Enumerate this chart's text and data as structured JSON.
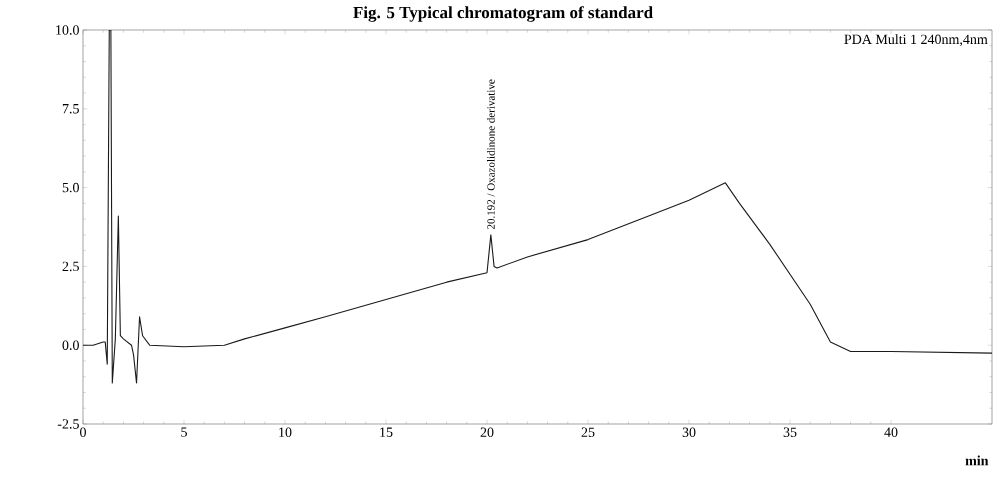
{
  "chart_data": {
    "type": "line",
    "title": "Fig. 5 Typical chromatogram of standard",
    "xlabel": "min",
    "annotations": [
      {
        "text": "20.192 / Oxazolidinone derivative",
        "x": 20.192,
        "y": 3.6
      },
      "PDA Multi 1 240nm,4nm"
    ],
    "x": [
      0,
      0.5,
      1.0,
      1.1,
      1.2,
      1.3,
      1.38,
      1.45,
      1.6,
      1.75,
      1.85,
      2.0,
      2.4,
      2.5,
      2.65,
      2.8,
      2.95,
      3.3,
      5,
      7,
      8,
      10,
      12,
      15,
      18,
      20,
      20.19,
      20.35,
      20.5,
      22,
      25,
      28,
      30,
      31.8,
      32.5,
      34,
      36,
      37,
      38,
      40,
      45
    ],
    "series": [
      {
        "color": "#1a1a1a",
        "values": [
          0,
          0,
          0.1,
          0.1,
          -0.6,
          10,
          10,
          -1.2,
          0.2,
          4.1,
          0.3,
          0.2,
          0.0,
          -0.3,
          -1.2,
          0.9,
          0.3,
          0.0,
          -0.05,
          0.0,
          0.2,
          0.55,
          0.9,
          1.45,
          2.0,
          2.3,
          3.5,
          2.5,
          2.45,
          2.8,
          3.35,
          4.1,
          4.6,
          5.15,
          4.5,
          3.2,
          1.3,
          0.1,
          -0.2,
          -0.2,
          -0.25
        ]
      }
    ],
    "xlim": [
      0,
      45
    ],
    "ylim": [
      -2.5,
      10
    ],
    "xticks": [
      0,
      5,
      10,
      15,
      20,
      25,
      30,
      35,
      40
    ],
    "yticks": [
      {
        "value": -2.5,
        "label": "-2.5"
      },
      {
        "value": 0,
        "label": "0.0"
      },
      {
        "value": 2.5,
        "label": "2.5"
      },
      {
        "value": 5,
        "label": "5.0"
      },
      {
        "value": 7.5,
        "label": "7.5"
      },
      {
        "value": 10,
        "label": "10.0"
      }
    ],
    "marker": "none",
    "line_style": "solid"
  }
}
